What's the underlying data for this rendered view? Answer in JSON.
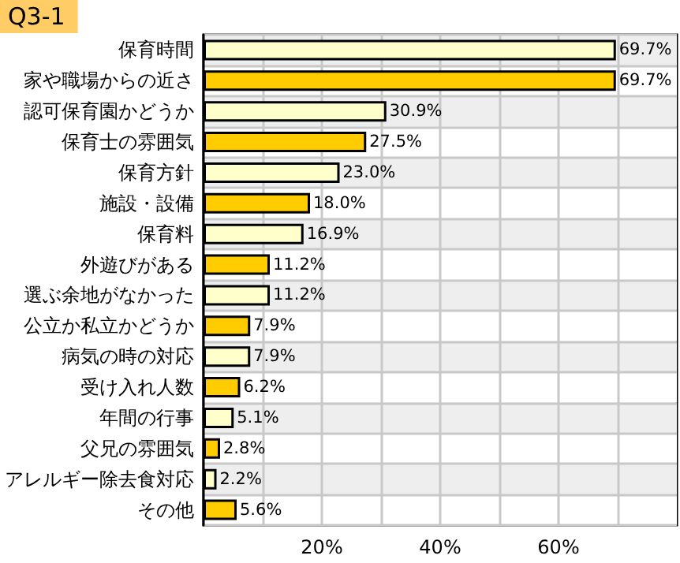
{
  "chart_data": {
    "type": "bar",
    "orientation": "horizontal",
    "title": "Q3-1",
    "categories": [
      "保育時間",
      "家や職場からの近さ",
      "認可保育園かどうか",
      "保育士の雰囲気",
      "保育方針",
      "施設・設備",
      "保育料",
      "外遊びがある",
      "選ぶ余地がなかった",
      "公立か私立かどうか",
      "病気の時の対応",
      "受け入れ人数",
      "年間の行事",
      "父兄の雰囲気",
      "アレルギー除去食対応",
      "その他"
    ],
    "values": [
      69.7,
      69.7,
      30.9,
      27.5,
      23.0,
      18.0,
      16.9,
      11.2,
      11.2,
      7.9,
      7.9,
      6.2,
      5.1,
      2.8,
      2.2,
      5.6
    ],
    "value_labels": [
      "69.7%",
      "69.7%",
      "30.9%",
      "27.5%",
      "23.0%",
      "18.0%",
      "16.9%",
      "11.2%",
      "11.2%",
      "7.9%",
      "7.9%",
      "6.2%",
      "5.1%",
      "2.8%",
      "2.2%",
      "5.6%"
    ],
    "colors": [
      "#ffffcc",
      "#ffcc00",
      "#ffffcc",
      "#ffcc00",
      "#ffffcc",
      "#ffcc00",
      "#ffffcc",
      "#ffcc00",
      "#ffffcc",
      "#ffcc00",
      "#ffffcc",
      "#ffcc00",
      "#ffffcc",
      "#ffcc00",
      "#ffffcc",
      "#ffcc00"
    ],
    "xlim": [
      0,
      80
    ],
    "xticks": [
      {
        "value": 10,
        "label": null
      },
      {
        "value": 20,
        "label": "20%"
      },
      {
        "value": 30,
        "label": null
      },
      {
        "value": 40,
        "label": "40%"
      },
      {
        "value": 50,
        "label": null
      },
      {
        "value": 60,
        "label": "60%"
      },
      {
        "value": 70,
        "label": null
      }
    ],
    "grid": "x"
  }
}
